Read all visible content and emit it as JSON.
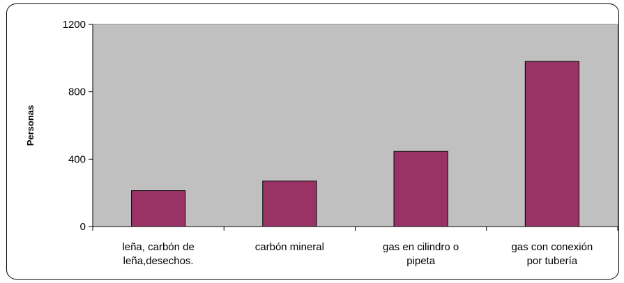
{
  "chart_data": {
    "type": "bar",
    "categories": [
      [
        "leña, carbón de",
        "leña,desechos."
      ],
      [
        "carbón mineral"
      ],
      [
        "gas en cilindro o",
        "pipeta"
      ],
      [
        "gas con conexión",
        "por tubería"
      ]
    ],
    "values": [
      213,
      270,
      446,
      980
    ],
    "ylabel": "Personas",
    "xlabel": "",
    "ylim": [
      0,
      1200
    ],
    "yticks": [
      0,
      400,
      800,
      1200
    ],
    "grid": false,
    "legend": "none",
    "colors": {
      "bar_fill": "#993366",
      "bar_stroke": "#000000",
      "plot_background": "#c0c0c0",
      "frame": "#000000"
    }
  }
}
